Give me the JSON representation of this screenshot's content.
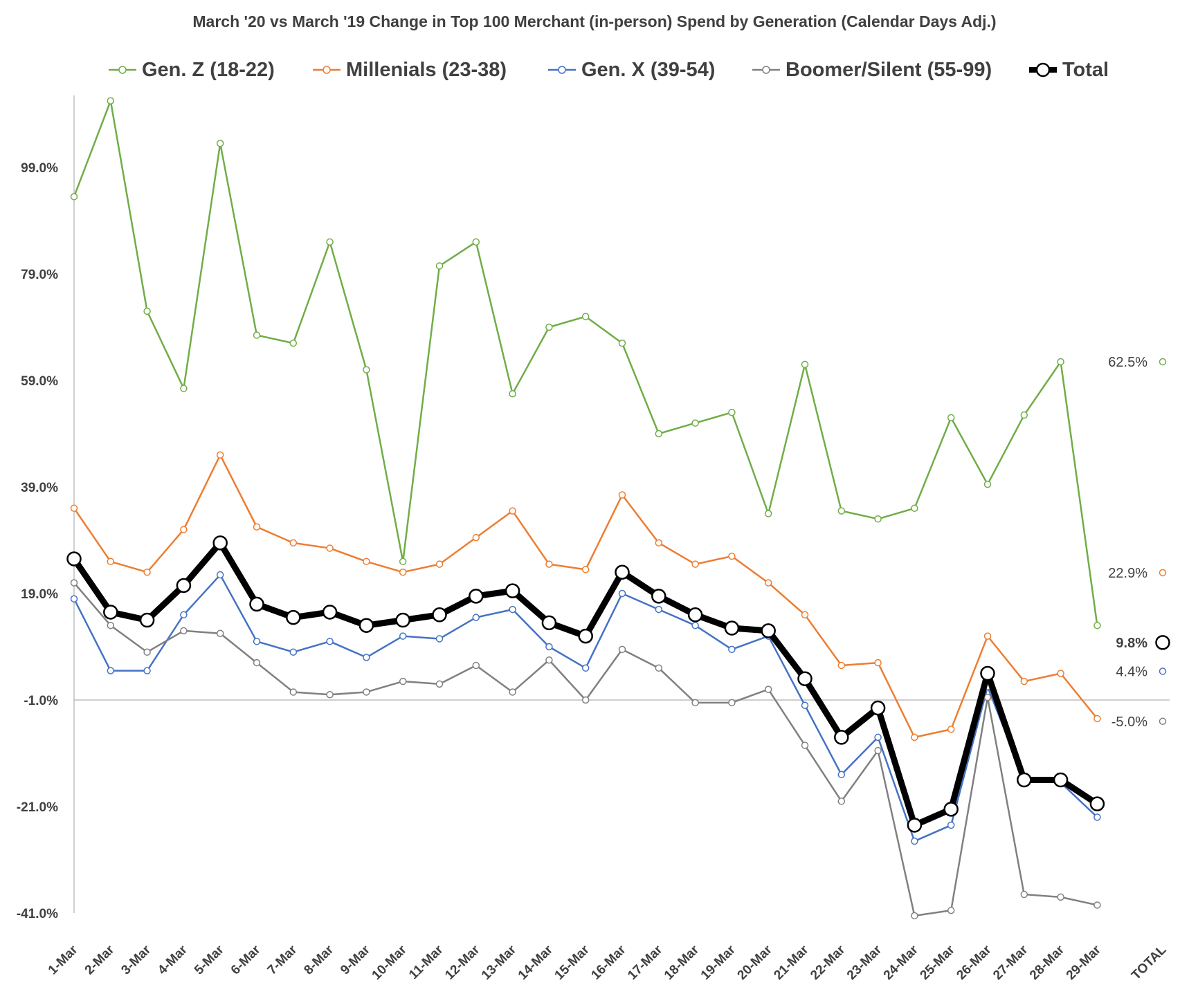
{
  "chart_data": {
    "type": "line",
    "title": "March '20 vs March '19 Change in Top 100 Merchant (in-person) Spend by Generation (Calendar Days Adj.)",
    "xlabel": "",
    "ylabel": "",
    "categories": [
      "1-Mar",
      "2-Mar",
      "3-Mar",
      "4-Mar",
      "5-Mar",
      "6-Mar",
      "7-Mar",
      "8-Mar",
      "9-Mar",
      "10-Mar",
      "11-Mar",
      "12-Mar",
      "13-Mar",
      "14-Mar",
      "15-Mar",
      "16-Mar",
      "17-Mar",
      "18-Mar",
      "19-Mar",
      "20-Mar",
      "21-Mar",
      "22-Mar",
      "23-Mar",
      "24-Mar",
      "25-Mar",
      "26-Mar",
      "27-Mar",
      "28-Mar",
      "29-Mar"
    ],
    "total_category": "TOTAL",
    "yticks": [
      "99.0%",
      "79.0%",
      "59.0%",
      "39.0%",
      "19.0%",
      "-1.0%",
      "-21.0%",
      "-41.0%"
    ],
    "ylim": [
      -41,
      116
    ],
    "y_axis_crosses_at": -1,
    "grid": false,
    "legend_position": "top",
    "series": [
      {
        "name": "Gen. Z (18-22)",
        "color": "#70AD47",
        "width": 2.5,
        "marker_r": 4.5,
        "values": [
          93.5,
          111.5,
          72,
          57.5,
          103.5,
          67.5,
          66,
          85,
          61,
          25,
          80.5,
          85,
          56.5,
          69,
          71,
          66,
          49,
          51,
          53,
          34,
          62,
          34.5,
          33,
          35,
          52,
          39.5,
          52.5,
          62.5,
          13
        ],
        "total": 62.5,
        "total_label": "62.5%"
      },
      {
        "name": "Millenials (23-38)",
        "color": "#ED7D31",
        "width": 2.5,
        "marker_r": 4.5,
        "values": [
          35,
          25,
          23,
          31,
          45,
          31.5,
          28.5,
          27.5,
          25,
          23,
          24.5,
          29.5,
          34.5,
          24.5,
          23.5,
          37.5,
          28.5,
          24.5,
          26,
          21,
          15,
          5.5,
          6,
          -8,
          -6.5,
          11,
          2.5,
          4,
          -4.5
        ],
        "total": 22.9,
        "total_label": "22.9%"
      },
      {
        "name": "Gen. X (39-54)",
        "color": "#4472C4",
        "width": 2.5,
        "marker_r": 4.5,
        "values": [
          18,
          4.5,
          4.5,
          15,
          22.5,
          10,
          8,
          10,
          7,
          11,
          10.5,
          14.5,
          16,
          9,
          5,
          19,
          16,
          13,
          8.5,
          11,
          -2,
          -15,
          -8,
          -27.5,
          -24.5,
          1.5,
          -16,
          -16.5,
          -23
        ],
        "total": 4.4,
        "total_label": "4.4%"
      },
      {
        "name": "Boomer/Silent (55-99)",
        "color": "#808080",
        "width": 2.5,
        "marker_r": 4.5,
        "values": [
          21,
          13,
          8,
          12,
          11.5,
          6,
          0.5,
          0,
          0.5,
          2.5,
          2,
          5.5,
          0.5,
          6.5,
          -1,
          8.5,
          5,
          -1.5,
          -1.5,
          1,
          -9.5,
          -20,
          -10.5,
          -41.5,
          -40.5,
          -0.5,
          -37.5,
          -38,
          -39.5
        ],
        "total": -5.0,
        "total_label": "-5.0%"
      },
      {
        "name": "Total",
        "color": "#000000",
        "width": 9,
        "marker_r": 9.5,
        "values": [
          25.5,
          15.5,
          14,
          20.5,
          28.5,
          17,
          14.5,
          15.5,
          13,
          14,
          15,
          18.5,
          19.5,
          13.5,
          11,
          23,
          18.5,
          15,
          12.5,
          12,
          3,
          -8,
          -2.5,
          -24.5,
          -21.5,
          4,
          -16,
          -16,
          -20.5
        ],
        "total": 9.8,
        "total_label": "9.8%"
      }
    ]
  }
}
